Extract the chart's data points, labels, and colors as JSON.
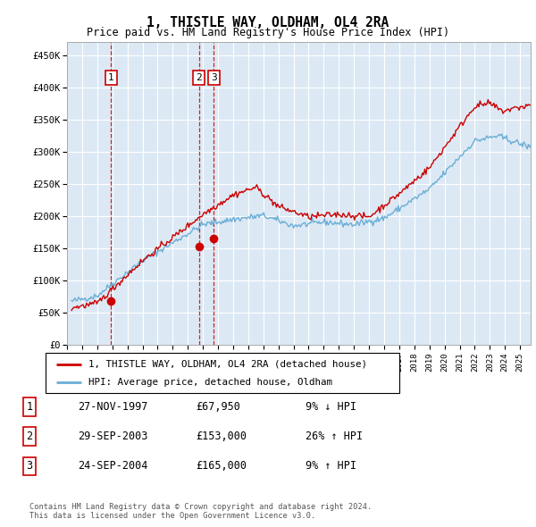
{
  "title": "1, THISTLE WAY, OLDHAM, OL4 2RA",
  "subtitle": "Price paid vs. HM Land Registry's House Price Index (HPI)",
  "ylabel_ticks": [
    "£0",
    "£50K",
    "£100K",
    "£150K",
    "£200K",
    "£250K",
    "£300K",
    "£350K",
    "£400K",
    "£450K"
  ],
  "ytick_values": [
    0,
    50000,
    100000,
    150000,
    200000,
    250000,
    300000,
    350000,
    400000,
    450000
  ],
  "ylim": [
    0,
    470000
  ],
  "xlim_start": 1995.3,
  "xlim_end": 2025.7,
  "background_color": "#dce9f5",
  "grid_color": "#ffffff",
  "sale_dates": [
    1997.91,
    2003.75,
    2004.73
  ],
  "sale_prices": [
    67950,
    153000,
    165000
  ],
  "sale_labels": [
    "1",
    "2",
    "3"
  ],
  "legend_line1": "1, THISTLE WAY, OLDHAM, OL4 2RA (detached house)",
  "legend_line2": "HPI: Average price, detached house, Oldham",
  "table_data": [
    [
      "1",
      "27-NOV-1997",
      "£67,950",
      "9% ↓ HPI"
    ],
    [
      "2",
      "29-SEP-2003",
      "£153,000",
      "26% ↑ HPI"
    ],
    [
      "3",
      "24-SEP-2004",
      "£165,000",
      "9% ↑ HPI"
    ]
  ],
  "footer": "Contains HM Land Registry data © Crown copyright and database right 2024.\nThis data is licensed under the Open Government Licence v3.0.",
  "hpi_color": "#6baed6",
  "sale_color": "#cc0000"
}
